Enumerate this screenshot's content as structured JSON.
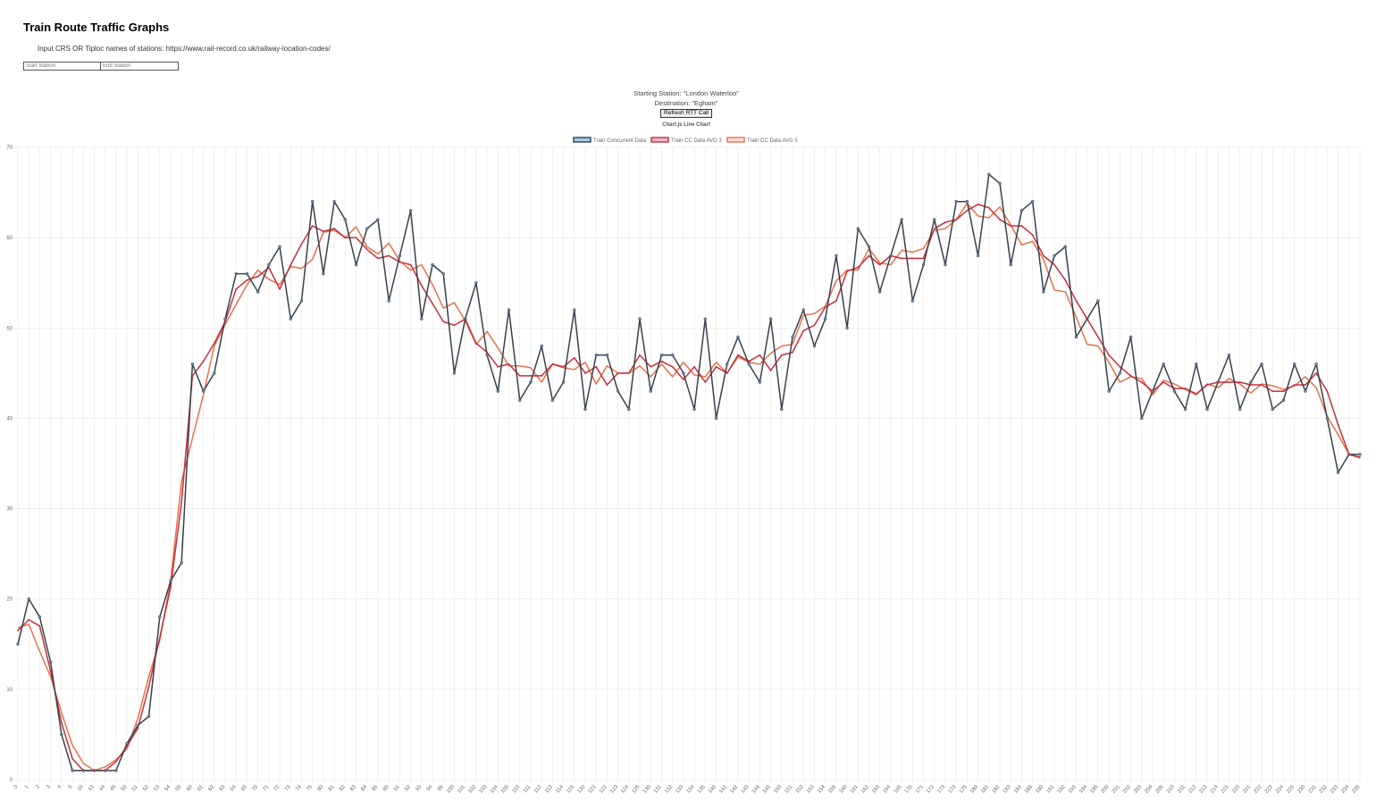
{
  "page": {
    "title": "Train Route Traffic Graphs",
    "instructions": "Input CRS OR Tiploc names of stations: https://www.rail-record.co.uk/railway-location-codes/",
    "start_placeholder": "Start Station",
    "end_placeholder": "End Station",
    "starting_station_text": "Starting Station: \"London Waterloo\"",
    "destination_text": "Destination: \"Egham\"",
    "refresh_label": "Refresh RTT Call",
    "chart_heading": "Chart.js Line Chart"
  },
  "colors": {
    "grid": "#e6e6e6",
    "series_concurrent": "#36414b",
    "series_concurrent_point": "#6a8caf",
    "series_avg3": "#c62f3e",
    "series_avg5": "#e8714a"
  },
  "chart_data": {
    "type": "line",
    "title": "",
    "xlabel": "",
    "ylabel": "",
    "ylim": [
      0,
      70
    ],
    "y_ticks": [
      0,
      10,
      20,
      30,
      40,
      50,
      60,
      70
    ],
    "grid": true,
    "legend_position": "top",
    "categories": [
      "0",
      "1",
      "2",
      "3",
      "4",
      "5",
      "10",
      "43",
      "44",
      "45",
      "50",
      "51",
      "52",
      "53",
      "54",
      "55",
      "60",
      "61",
      "62",
      "63",
      "64",
      "65",
      "70",
      "71",
      "72",
      "73",
      "74",
      "75",
      "80",
      "81",
      "82",
      "83",
      "84",
      "85",
      "90",
      "91",
      "92",
      "93",
      "94",
      "95",
      "100",
      "101",
      "102",
      "103",
      "104",
      "105",
      "110",
      "111",
      "112",
      "113",
      "114",
      "115",
      "120",
      "121",
      "122",
      "123",
      "124",
      "125",
      "130",
      "131",
      "132",
      "133",
      "134",
      "135",
      "140",
      "141",
      "142",
      "143",
      "144",
      "145",
      "150",
      "151",
      "152",
      "153",
      "154",
      "155",
      "160",
      "161",
      "162",
      "163",
      "164",
      "165",
      "170",
      "171",
      "172",
      "173",
      "174",
      "175",
      "180",
      "181",
      "182",
      "183",
      "184",
      "185",
      "190",
      "191",
      "192",
      "193",
      "194",
      "195",
      "200",
      "201",
      "202",
      "203",
      "204",
      "205",
      "210",
      "211",
      "212",
      "213",
      "214",
      "215",
      "220",
      "221",
      "222",
      "223",
      "224",
      "225",
      "230",
      "231",
      "232",
      "233",
      "234",
      "235"
    ],
    "series": [
      {
        "name": "Train Concurrent Data",
        "values": [
          15,
          20,
          18,
          13,
          5,
          1,
          1,
          1,
          1,
          1,
          4,
          6,
          7,
          18,
          22,
          24,
          46,
          43,
          45,
          51,
          56,
          56,
          54,
          57,
          59,
          51,
          53,
          64,
          56,
          64,
          62,
          57,
          61,
          62,
          53,
          58,
          63,
          51,
          57,
          56,
          45,
          51,
          55,
          47,
          43,
          52,
          42,
          44,
          48,
          42,
          44,
          52,
          41,
          47,
          47,
          43,
          41,
          51,
          43,
          47,
          47,
          45,
          41,
          51,
          40,
          46,
          49,
          46,
          44,
          51,
          41,
          49,
          52,
          48,
          51,
          58,
          50,
          61,
          59,
          54,
          58,
          62,
          53,
          57,
          62,
          57,
          64,
          64,
          58,
          67,
          66,
          57,
          63,
          64,
          54,
          58,
          59,
          49,
          51,
          53,
          43,
          45,
          49,
          40,
          43,
          46,
          43,
          41,
          46,
          41,
          44,
          47,
          41,
          44,
          46,
          41,
          42,
          46,
          43,
          46,
          40,
          34,
          36,
          36
        ]
      },
      {
        "name": "Train CC Data AVG 3",
        "values": [
          16.5,
          17.7,
          17.0,
          12.0,
          6.3,
          2.3,
          1.0,
          1.0,
          1.0,
          2.0,
          3.7,
          5.7,
          10.3,
          15.7,
          21.3,
          30.7,
          44.7,
          46.3,
          48.3,
          50.7,
          54.3,
          55.3,
          55.7,
          56.7,
          54.3,
          57.0,
          59.3,
          61.3,
          60.7,
          61.0,
          60.0,
          60.0,
          58.7,
          57.7,
          58.0,
          57.3,
          57.0,
          54.7,
          52.7,
          50.7,
          50.3,
          51.0,
          48.3,
          47.3,
          45.7,
          46.0,
          44.7,
          44.7,
          44.7,
          46.0,
          45.7,
          46.7,
          45.0,
          45.7,
          43.7,
          45.0,
          45.0,
          47.0,
          45.7,
          46.3,
          45.7,
          44.3,
          45.7,
          44.0,
          45.7,
          45.0,
          47.0,
          46.3,
          47.0,
          45.3,
          47.0,
          47.3,
          49.7,
          50.3,
          52.3,
          53.0,
          56.3,
          56.7,
          58.0,
          57.0,
          58.0,
          57.7,
          57.7,
          57.7,
          61.0,
          61.7,
          62.0,
          63.0,
          63.7,
          63.3,
          62.0,
          61.3,
          61.3,
          60.3,
          58.0,
          57.0,
          55.3,
          53.0,
          51.0,
          49.0,
          47.0,
          45.7,
          44.7,
          44.0,
          43.0,
          44.0,
          43.3,
          43.3,
          42.7,
          43.7,
          44.0,
          44.0,
          44.0,
          43.7,
          43.7,
          43.0,
          43.0,
          43.7,
          43.7,
          45.0,
          43.0,
          39.3,
          36.0,
          35.7
        ]
      },
      {
        "name": "Train CC Data AVG 5",
        "values": [
          16.8,
          17.2,
          14.2,
          11.4,
          7.4,
          3.8,
          1.8,
          1.0,
          1.4,
          2.2,
          3.4,
          6.8,
          11.4,
          15.4,
          22.0,
          33.0,
          37.8,
          42.6,
          48.0,
          50.4,
          52.6,
          54.8,
          56.4,
          55.4,
          54.8,
          56.8,
          56.6,
          57.6,
          60.6,
          60.8,
          60.0,
          61.2,
          59.0,
          58.2,
          59.4,
          57.4,
          56.4,
          57.0,
          54.8,
          52.2,
          52.8,
          50.8,
          48.2,
          49.6,
          47.8,
          45.8,
          45.8,
          45.6,
          44.0,
          46.0,
          45.6,
          45.4,
          46.2,
          43.8,
          45.8,
          45.0,
          45.0,
          45.8,
          44.6,
          46.0,
          44.6,
          46.2,
          44.8,
          44.6,
          46.2,
          45.0,
          46.8,
          46.2,
          46.0,
          47.2,
          48.0,
          48.2,
          51.4,
          51.6,
          52.4,
          55.2,
          56.4,
          56.4,
          58.8,
          57.2,
          57.0,
          58.6,
          58.4,
          58.8,
          60.8,
          61.0,
          62.0,
          63.8,
          62.4,
          62.2,
          63.4,
          61.4,
          59.2,
          59.6,
          57.6,
          54.2,
          54.0,
          51.2,
          48.2,
          48.0,
          46.2,
          44.0,
          44.6,
          44.4,
          42.6,
          44.2,
          43.8,
          43.2,
          42.6,
          43.8,
          43.4,
          44.4,
          43.8,
          42.8,
          43.8,
          43.6,
          43.2,
          43.6,
          44.6,
          43.4,
          40.2,
          38.2,
          36.0,
          35.6
        ]
      }
    ]
  }
}
